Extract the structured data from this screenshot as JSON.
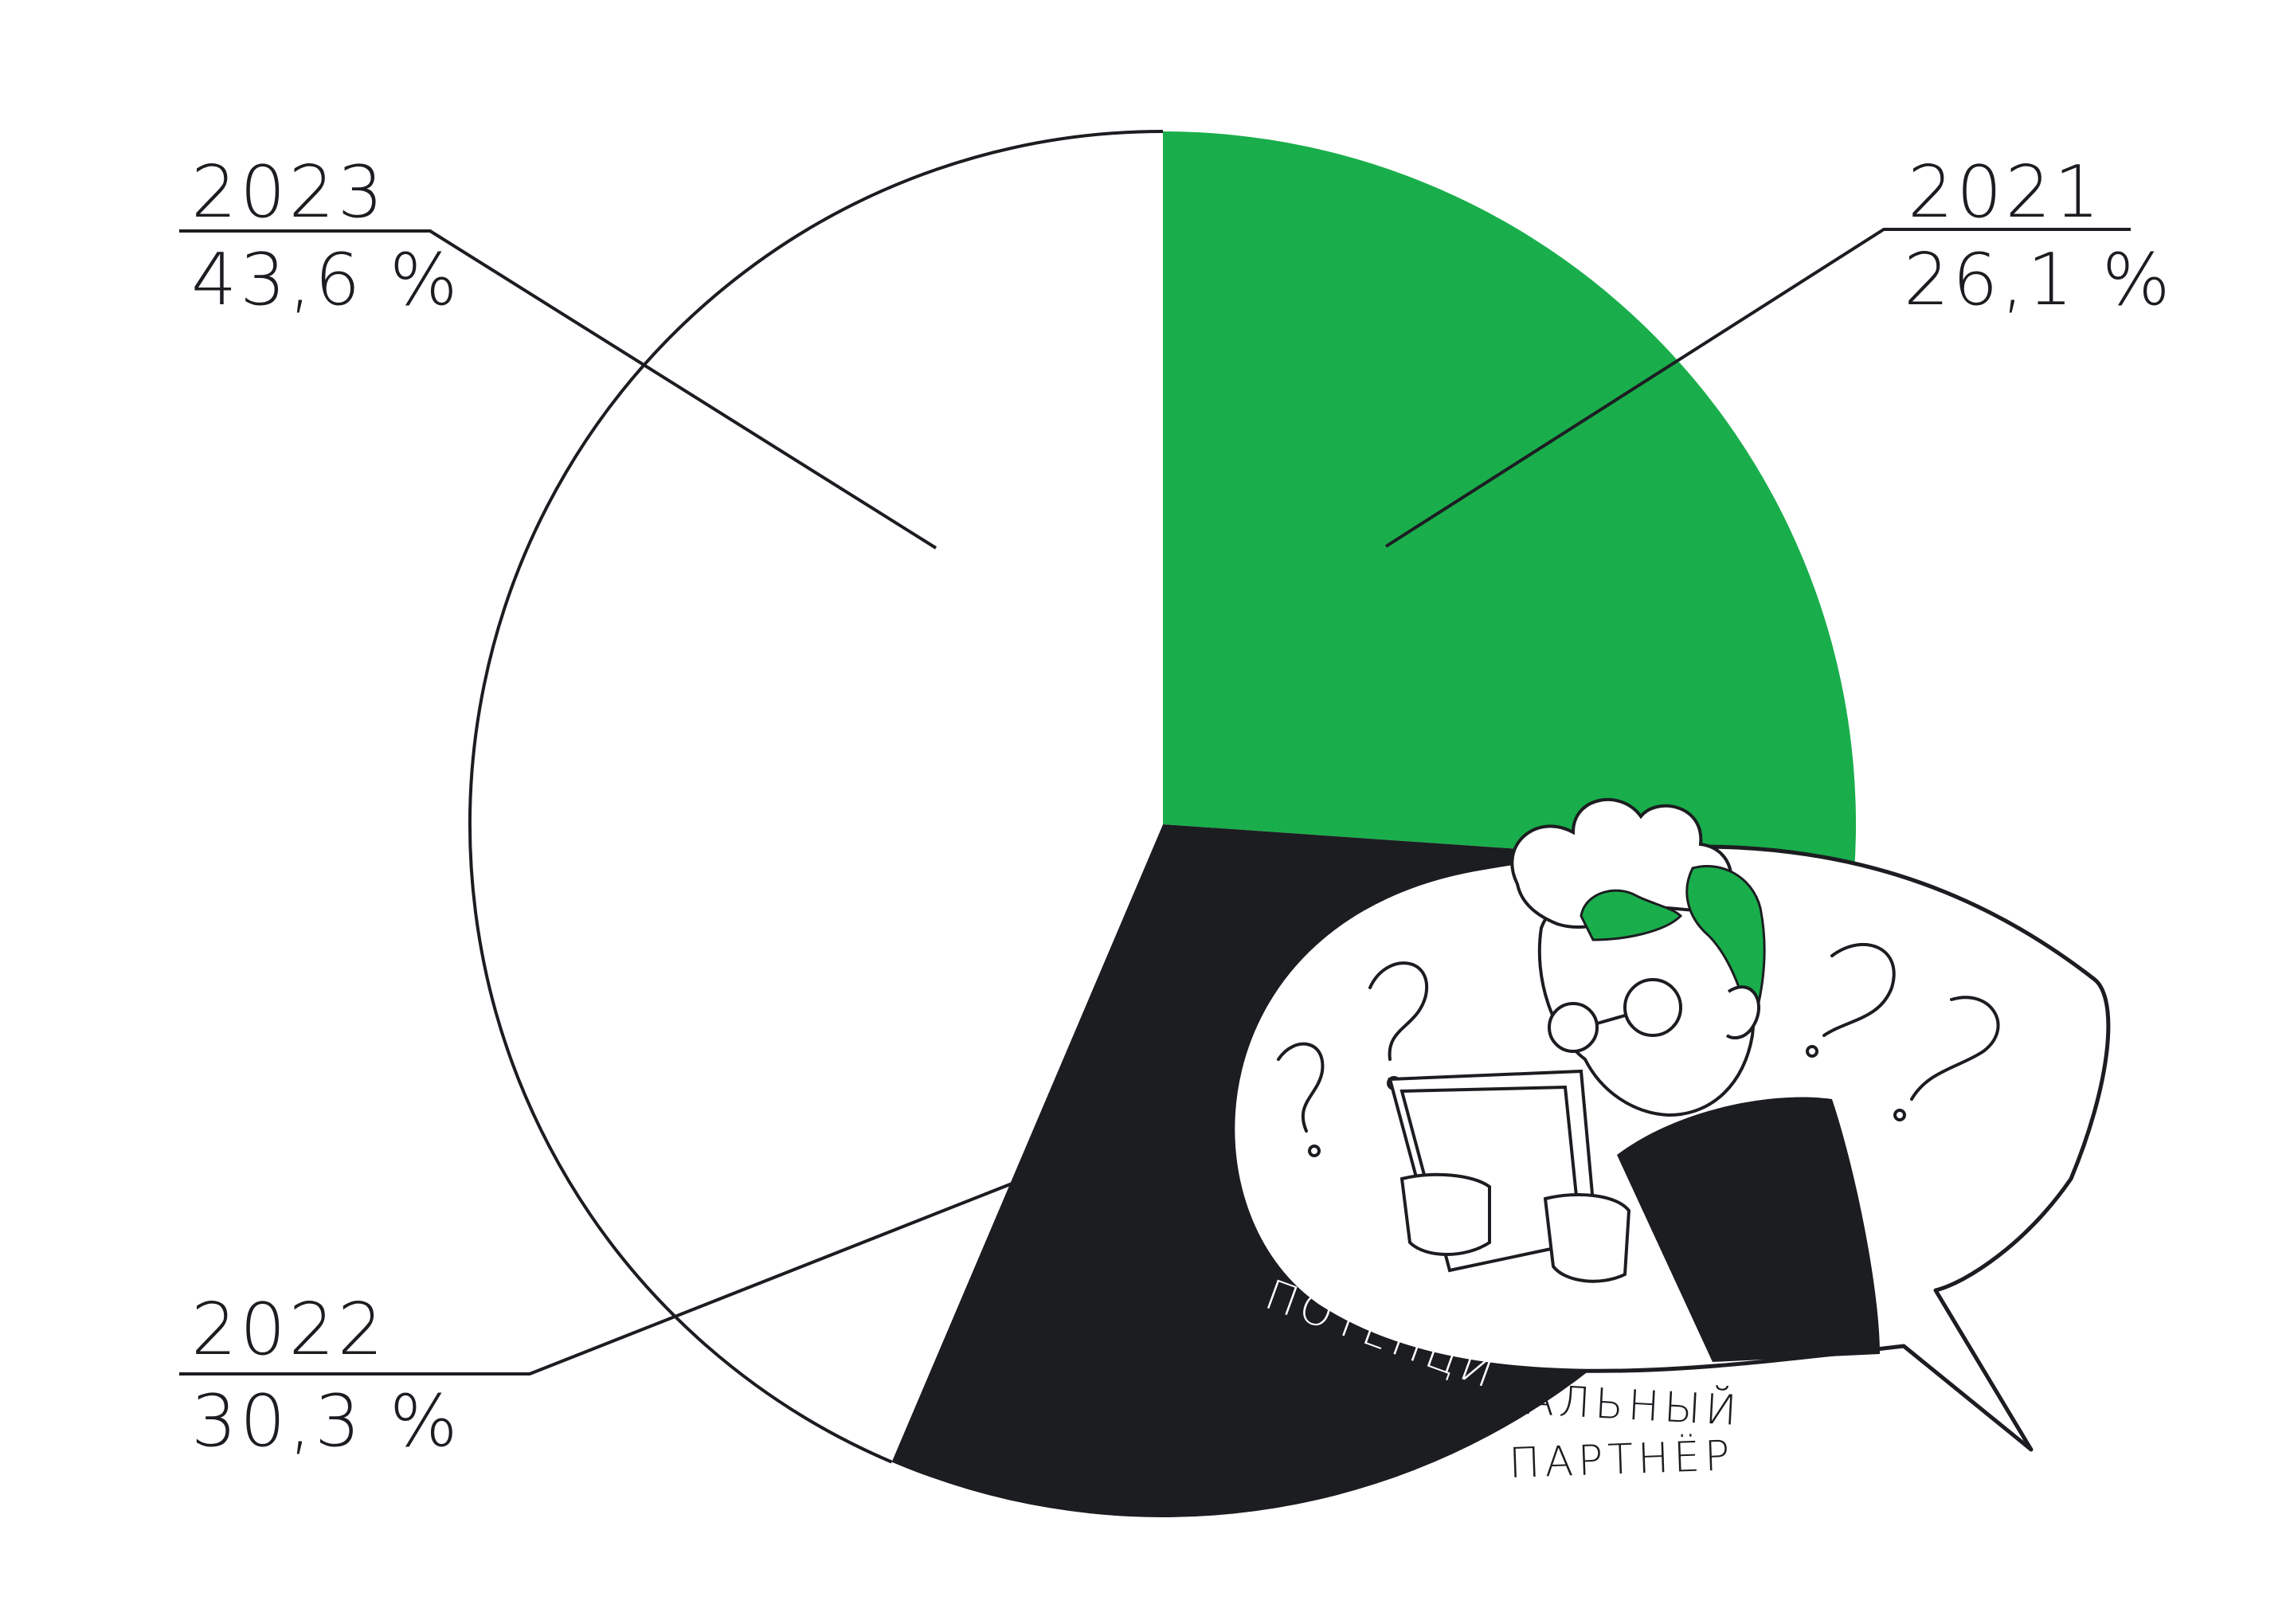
{
  "chart_data": {
    "type": "pie",
    "slices": [
      {
        "label": "2021",
        "value": 26.1,
        "value_text": "26,1 %",
        "color": "#19ae4b"
      },
      {
        "label": "2022",
        "value": 30.3,
        "value_text": "30,3 %",
        "color": "#1c1d21"
      },
      {
        "label": "2023",
        "value": 43.6,
        "value_text": "43,6 %",
        "color": "#ffffff"
      }
    ],
    "start": "12 o'clock",
    "direction": "clockwise"
  },
  "illustration": {
    "caption_line1_light": "ПОТЕНЦИ",
    "caption_line1_dark": "АЛЬНЫЙ",
    "caption_line2": "ПАРТНЁР"
  }
}
